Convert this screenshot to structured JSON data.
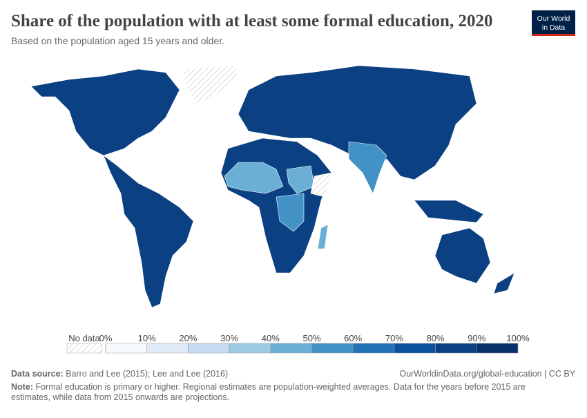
{
  "header": {
    "title": "Share of the population with at least some formal education, 2020",
    "subtitle": "Based on the population aged 15 years and older.",
    "logo": [
      "Our World",
      "in Data"
    ]
  },
  "legend": {
    "no_data": "No data",
    "ticks": [
      {
        "value": 0,
        "label": "0%"
      },
      {
        "value": 10,
        "label": "10%"
      },
      {
        "value": 20,
        "label": "20%"
      },
      {
        "value": 30,
        "label": "30%"
      },
      {
        "value": 40,
        "label": "40%"
      },
      {
        "value": 50,
        "label": "50%"
      },
      {
        "value": 60,
        "label": "60%"
      },
      {
        "value": 70,
        "label": "70%"
      },
      {
        "value": 80,
        "label": "80%"
      },
      {
        "value": 90,
        "label": "90%"
      },
      {
        "value": 100,
        "label": "100%"
      }
    ],
    "colors": [
      "#f7fbff",
      "#deebf7",
      "#c6dbef",
      "#9ecae1",
      "#6baed6",
      "#4292c6",
      "#2171b5",
      "#08519c",
      "#0b4083",
      "#08306b"
    ]
  },
  "footer": {
    "source_label": "Data source:",
    "source": "Barro and Lee (2015); Lee and Lee (2016)",
    "link": "OurWorldinData.org/global-education | CC BY",
    "note_label": "Note:",
    "note": "Formal education is primary or higher. Regional estimates are population-weighted averages. Data for the years before 2015 are estimates, while data from 2015 onwards are projections."
  }
}
